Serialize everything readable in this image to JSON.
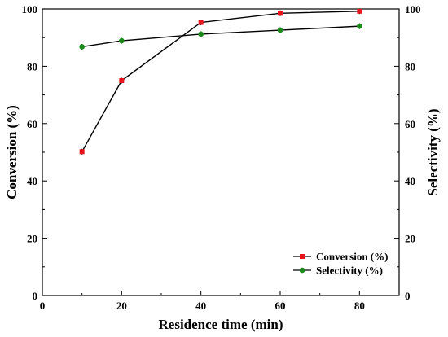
{
  "chart_data": {
    "type": "line",
    "xlabel": "Residence time (min)",
    "ylabel_left": "Conversion (%)",
    "ylabel_right": "Selectivity (%)",
    "xlim": [
      0,
      90
    ],
    "ylim_left": [
      0,
      100
    ],
    "ylim_right": [
      0,
      100
    ],
    "x_ticks": [
      0,
      20,
      40,
      60,
      80
    ],
    "y_ticks": [
      0,
      20,
      40,
      60,
      80,
      100
    ],
    "grid": false,
    "legend_position": "bottom-right",
    "series": [
      {
        "name": "Conversion (%)",
        "axis": "left",
        "marker": "square",
        "color": "#e8141c",
        "x": [
          10,
          20,
          40,
          60,
          80
        ],
        "values": [
          50.2,
          75.0,
          95.3,
          98.5,
          99.2
        ]
      },
      {
        "name": "Selectivity (%)",
        "axis": "right",
        "marker": "circle",
        "color": "#1a8a1a",
        "x": [
          10,
          20,
          40,
          60,
          80
        ],
        "values": [
          86.8,
          88.9,
          91.2,
          92.6,
          94.0
        ]
      }
    ]
  }
}
